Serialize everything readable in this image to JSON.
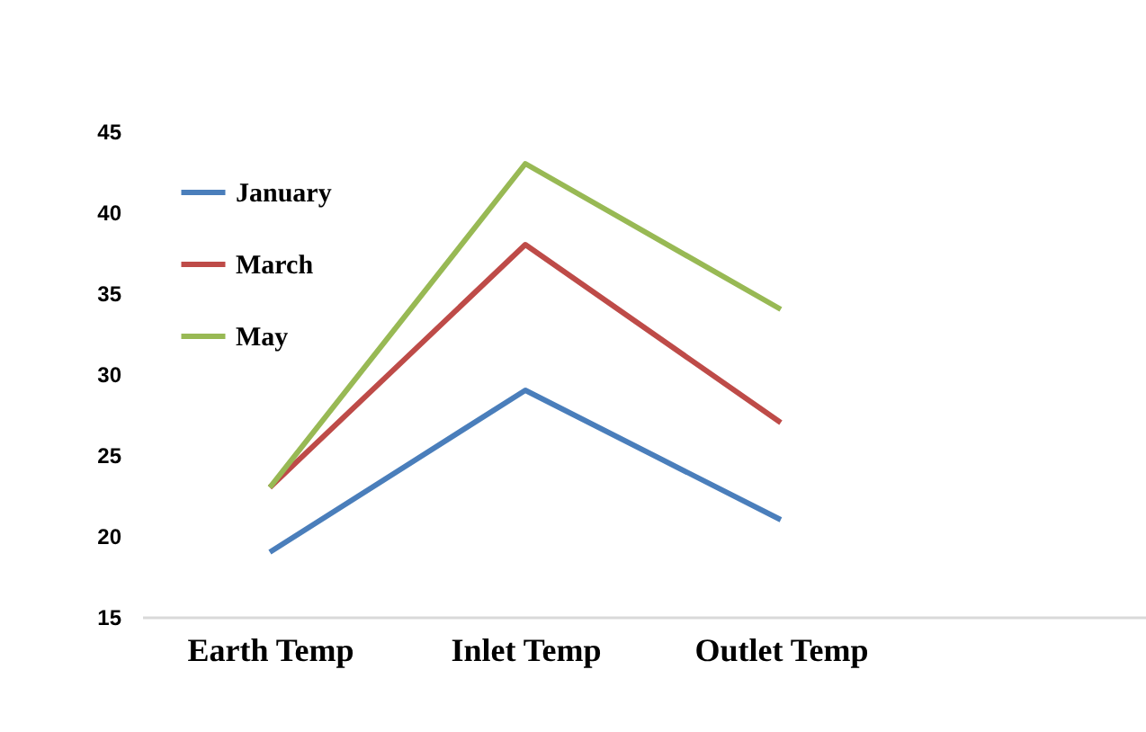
{
  "chart_data": {
    "type": "line",
    "categories": [
      "Earth Temp",
      "Inlet Temp",
      "Outlet Temp",
      null
    ],
    "series": [
      {
        "name": "January",
        "color": "#4a7ebb",
        "values": [
          19,
          29,
          21,
          null
        ]
      },
      {
        "name": "March",
        "color": "#be4b48",
        "values": [
          23,
          38,
          27,
          null
        ]
      },
      {
        "name": "May",
        "color": "#98b954",
        "values": [
          23,
          43,
          34,
          null
        ]
      }
    ],
    "ylim": [
      15,
      45
    ],
    "yticks": [
      15,
      20,
      25,
      30,
      35,
      40,
      45
    ],
    "grid": false,
    "legend": "top left"
  }
}
